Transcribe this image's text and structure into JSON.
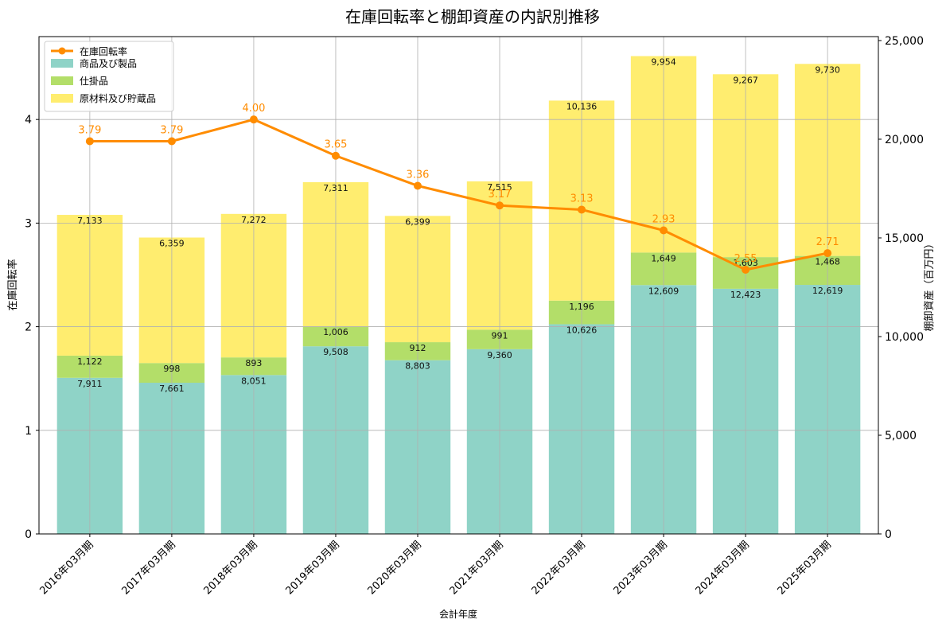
{
  "chart_data": {
    "type": "bar",
    "title": "在庫回転率と棚卸資産の内訳別推移",
    "xlabel": "会計年度",
    "ylabel_left": "在庫回転率",
    "ylabel_right": "棚卸資産（百万円）",
    "ylim_left": [
      0,
      4.8
    ],
    "ylim_right": [
      0,
      25200
    ],
    "yticks_left": [
      "0",
      "1",
      "2",
      "3",
      "4"
    ],
    "yticks_right": [
      "0",
      "5,000",
      "10,000",
      "15,000",
      "20,000",
      "25,000"
    ],
    "grid": true,
    "legend_position": "top-left",
    "categories": [
      "2016年03月期",
      "2017年03月期",
      "2018年03月期",
      "2019年03月期",
      "2020年03月期",
      "2021年03月期",
      "2022年03月期",
      "2023年03月期",
      "2024年03月期",
      "2025年03月期"
    ],
    "bar_series": [
      {
        "name": "商品及び製品",
        "color": "#8fd3c7",
        "values": [
          7911,
          7661,
          8051,
          9508,
          8803,
          9360,
          10626,
          12609,
          12423,
          12619
        ],
        "labels": [
          "7,911",
          "7,661",
          "8,051",
          "9,508",
          "8,803",
          "9,360",
          "10,626",
          "12,609",
          "12,423",
          "12,619"
        ]
      },
      {
        "name": "仕掛品",
        "color": "#b3de69",
        "values": [
          1122,
          998,
          893,
          1006,
          912,
          991,
          1196,
          1649,
          1603,
          1468
        ],
        "labels": [
          "1,122",
          "998",
          "893",
          "1,006",
          "912",
          "991",
          "1,196",
          "1,649",
          "1,603",
          "1,468"
        ]
      },
      {
        "name": "原材料及び貯蔵品",
        "color": "#ffed6f",
        "values": [
          7133,
          6359,
          7272,
          7311,
          6399,
          7515,
          10136,
          9954,
          9267,
          9730
        ],
        "labels": [
          "7,133",
          "6,359",
          "7,272",
          "7,311",
          "6,399",
          "7,515",
          "10,136",
          "9,954",
          "9,267",
          "9,730"
        ]
      }
    ],
    "line_series": {
      "name": "在庫回転率",
      "color": "#ff8c00",
      "values": [
        3.79,
        3.79,
        4.0,
        3.65,
        3.36,
        3.17,
        3.13,
        2.93,
        2.55,
        2.71
      ],
      "labels": [
        "3.79",
        "3.79",
        "4.00",
        "3.65",
        "3.36",
        "3.17",
        "3.13",
        "2.93",
        "2.55",
        "2.71"
      ]
    }
  }
}
